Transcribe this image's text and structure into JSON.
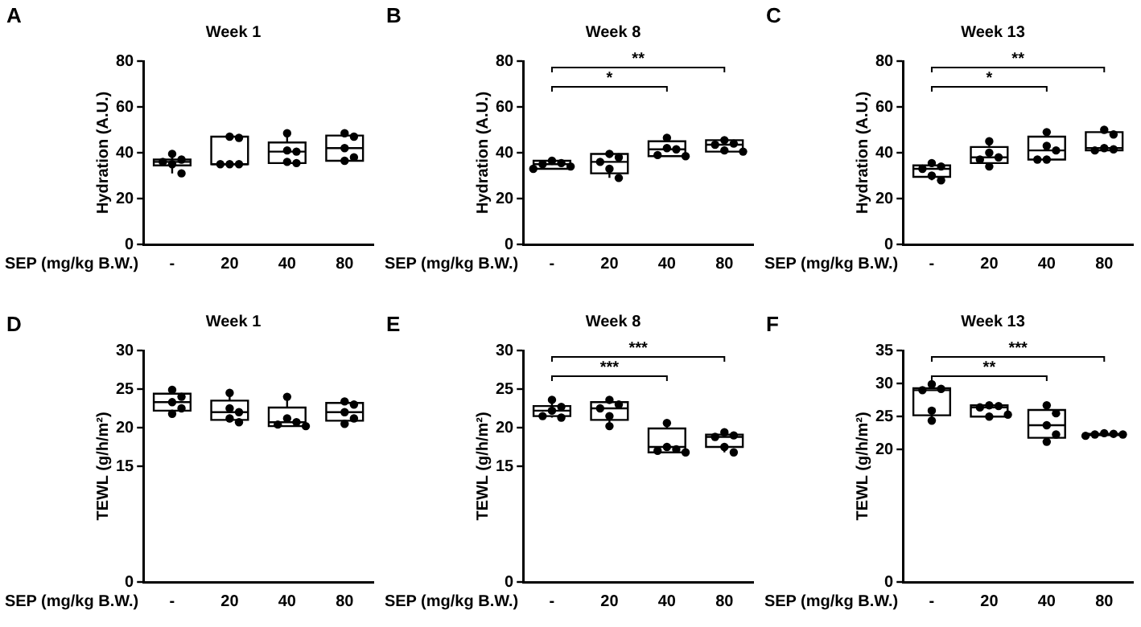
{
  "chart_data": [
    {
      "type": "box",
      "title": "Week 1",
      "xlabel": "SEP (mg/kg B.W.)",
      "ylabel": "Hydration (A.U.)",
      "categories": [
        "-",
        "20",
        "40",
        "80"
      ],
      "ylim": [
        0,
        80
      ],
      "yticks": [
        0,
        20,
        40,
        60,
        80
      ],
      "grid": false,
      "legend": false,
      "marker": "circle",
      "annotations": [
        "A"
      ],
      "boxes": [
        {
          "low": 31,
          "q1": 34.5,
          "median": 36,
          "q3": 37,
          "high": 39.5
        },
        {
          "low": 35,
          "q1": 35,
          "median": 35,
          "q3": 47,
          "high": 47
        },
        {
          "low": 35.5,
          "q1": 35.5,
          "median": 40.5,
          "q3": 44.5,
          "high": 48.5
        },
        {
          "low": 36.5,
          "q1": 36.5,
          "median": 42,
          "q3": 47.5,
          "high": 48.5
        }
      ],
      "series": [
        {
          "type": "scatter",
          "color": "#000000",
          "x": [
            "-",
            "-",
            "-",
            "-",
            "-",
            "20",
            "20",
            "20",
            "20",
            "20",
            "40",
            "40",
            "40",
            "40",
            "40",
            "80",
            "80",
            "80",
            "80",
            "80"
          ],
          "values": [
            39.5,
            37,
            36,
            35,
            31,
            47,
            46.5,
            35,
            35,
            35,
            48.5,
            41,
            40.5,
            36,
            35.5,
            48.5,
            47,
            42,
            38,
            36.5
          ]
        }
      ]
    },
    {
      "type": "box",
      "title": "Week 8",
      "xlabel": "SEP (mg/kg B.W.)",
      "ylabel": "Hydration (A.U.)",
      "categories": [
        "-",
        "20",
        "40",
        "80"
      ],
      "ylim": [
        0,
        80
      ],
      "yticks": [
        0,
        20,
        40,
        60,
        80
      ],
      "grid": false,
      "legend": false,
      "marker": "circle",
      "annotations": [
        "B",
        "*",
        "**"
      ],
      "boxes": [
        {
          "low": 33,
          "q1": 33,
          "median": 35,
          "q3": 36.5,
          "high": 36.5
        },
        {
          "low": 29,
          "q1": 31,
          "median": 36,
          "q3": 39.5,
          "high": 39.5
        },
        {
          "low": 38.5,
          "q1": 38.5,
          "median": 41.5,
          "q3": 45,
          "high": 46.5
        },
        {
          "low": 40.5,
          "q1": 40.5,
          "median": 43.5,
          "q3": 45.5,
          "high": 45.5
        }
      ],
      "series": [
        {
          "type": "scatter",
          "color": "#000000",
          "x": [
            "-",
            "-",
            "-",
            "-",
            "-",
            "20",
            "20",
            "20",
            "20",
            "20",
            "40",
            "40",
            "40",
            "40",
            "40",
            "80",
            "80",
            "80",
            "80",
            "80"
          ],
          "values": [
            36.5,
            35.5,
            35,
            34,
            33,
            39.5,
            38,
            36,
            33,
            29,
            46.5,
            42,
            41.5,
            39,
            38.5,
            45.5,
            44,
            43.5,
            41,
            40.5
          ]
        }
      ]
    },
    {
      "type": "box",
      "title": "Week 13",
      "xlabel": "SEP (mg/kg B.W.)",
      "ylabel": "Hydration (A.U.)",
      "categories": [
        "-",
        "20",
        "40",
        "80"
      ],
      "ylim": [
        0,
        80
      ],
      "yticks": [
        0,
        20,
        40,
        60,
        80
      ],
      "grid": false,
      "legend": false,
      "marker": "circle",
      "annotations": [
        "C",
        "*",
        "**"
      ],
      "boxes": [
        {
          "low": 28,
          "q1": 29.5,
          "median": 33,
          "q3": 34.5,
          "high": 35.5
        },
        {
          "low": 34,
          "q1": 35.5,
          "median": 38,
          "q3": 42.5,
          "high": 45
        },
        {
          "low": 37,
          "q1": 37,
          "median": 41,
          "q3": 47,
          "high": 49
        },
        {
          "low": 41,
          "q1": 41,
          "median": 42,
          "q3": 49,
          "high": 50
        }
      ],
      "series": [
        {
          "type": "scatter",
          "color": "#000000",
          "x": [
            "-",
            "-",
            "-",
            "-",
            "-",
            "20",
            "20",
            "20",
            "20",
            "20",
            "40",
            "40",
            "40",
            "40",
            "40",
            "80",
            "80",
            "80",
            "80",
            "80"
          ],
          "values": [
            35.5,
            34,
            33,
            30,
            28,
            45,
            40,
            38,
            37,
            34,
            49,
            43,
            41,
            37,
            37,
            50,
            48,
            42,
            41.5,
            41
          ]
        }
      ]
    },
    {
      "type": "box",
      "title": "Week 1",
      "xlabel": "SEP (mg/kg B.W.)",
      "ylabel": "TEWL (g/h/m²)",
      "categories": [
        "-",
        "20",
        "40",
        "80"
      ],
      "ylim": [
        0,
        30
      ],
      "yticks": [
        0,
        15,
        20,
        25,
        30
      ],
      "grid": false,
      "legend": false,
      "marker": "circle",
      "annotations": [
        "D"
      ],
      "boxes": [
        {
          "low": 21.8,
          "q1": 22.2,
          "median": 23.3,
          "q3": 24.4,
          "high": 24.9
        },
        {
          "low": 20.7,
          "q1": 21,
          "median": 22,
          "q3": 23.5,
          "high": 24.5
        },
        {
          "low": 20.2,
          "q1": 20.2,
          "median": 20.7,
          "q3": 22.6,
          "high": 24
        },
        {
          "low": 20.5,
          "q1": 20.9,
          "median": 22,
          "q3": 23.2,
          "high": 23.4
        }
      ],
      "series": [
        {
          "type": "scatter",
          "color": "#000000",
          "x": [
            "-",
            "-",
            "-",
            "-",
            "-",
            "20",
            "20",
            "20",
            "20",
            "20",
            "40",
            "40",
            "40",
            "40",
            "40",
            "80",
            "80",
            "80",
            "80",
            "80"
          ],
          "values": [
            24.9,
            24,
            23.3,
            22.5,
            21.8,
            24.5,
            22.5,
            22,
            21.2,
            20.7,
            24,
            21.2,
            20.7,
            20.4,
            20.2,
            23.4,
            23,
            22,
            21.2,
            20.5
          ]
        }
      ]
    },
    {
      "type": "box",
      "title": "Week 8",
      "xlabel": "SEP (mg/kg B.W.)",
      "ylabel": "TEWL (g/h/m²)",
      "categories": [
        "-",
        "20",
        "40",
        "80"
      ],
      "ylim": [
        0,
        30
      ],
      "yticks": [
        0,
        15,
        20,
        25,
        30
      ],
      "grid": false,
      "legend": false,
      "marker": "circle",
      "annotations": [
        "E",
        "***",
        "***"
      ],
      "boxes": [
        {
          "low": 21.3,
          "q1": 21.5,
          "median": 22.2,
          "q3": 22.8,
          "high": 23.6
        },
        {
          "low": 20.2,
          "q1": 21,
          "median": 22.5,
          "q3": 23.3,
          "high": 23.6
        },
        {
          "low": 16.8,
          "q1": 16.8,
          "median": 17.5,
          "q3": 19.9,
          "high": 20.6
        },
        {
          "low": 16.8,
          "q1": 17.5,
          "median": 18.8,
          "q3": 19.1,
          "high": 19.4
        }
      ],
      "series": [
        {
          "type": "scatter",
          "color": "#000000",
          "x": [
            "-",
            "-",
            "-",
            "-",
            "-",
            "20",
            "20",
            "20",
            "20",
            "20",
            "40",
            "40",
            "40",
            "40",
            "40",
            "80",
            "80",
            "80",
            "80",
            "80"
          ],
          "values": [
            23.6,
            22.7,
            22.2,
            21.5,
            21.3,
            23.6,
            23,
            22.5,
            21.5,
            20.2,
            20.6,
            17.5,
            17.2,
            17,
            16.8,
            19.4,
            19,
            18.8,
            17.5,
            16.8
          ]
        }
      ]
    },
    {
      "type": "box",
      "title": "Week 13",
      "xlabel": "SEP (mg/kg B.W.)",
      "ylabel": "TEWL (g/h/m²)",
      "categories": [
        "-",
        "20",
        "40",
        "80"
      ],
      "ylim": [
        0,
        35
      ],
      "yticks": [
        0,
        20,
        25,
        30,
        35
      ],
      "grid": false,
      "legend": false,
      "marker": "circle",
      "annotations": [
        "F",
        "**",
        "***"
      ],
      "boxes": [
        {
          "low": 24.4,
          "q1": 25.2,
          "median": 29,
          "q3": 29.3,
          "high": 29.9
        },
        {
          "low": 25,
          "q1": 25,
          "median": 26.4,
          "q3": 26.7,
          "high": 26.7
        },
        {
          "low": 21.2,
          "q1": 21.8,
          "median": 23.7,
          "q3": 26,
          "high": 26.7
        },
        {
          "low": 22.1,
          "q1": 22.2,
          "median": 22.3,
          "q3": 22.4,
          "high": 22.5
        }
      ],
      "series": [
        {
          "type": "scatter",
          "color": "#000000",
          "x": [
            "-",
            "-",
            "-",
            "-",
            "-",
            "20",
            "20",
            "20",
            "20",
            "20",
            "40",
            "40",
            "40",
            "40",
            "40",
            "80",
            "80",
            "80",
            "80",
            "80"
          ],
          "values": [
            29.9,
            29.2,
            29,
            25.9,
            24.4,
            26.7,
            26.6,
            26.4,
            25.3,
            25,
            26.7,
            25.5,
            23.7,
            22.3,
            21.2,
            22.5,
            22.4,
            22.3,
            22.3,
            22.1
          ]
        }
      ]
    }
  ]
}
